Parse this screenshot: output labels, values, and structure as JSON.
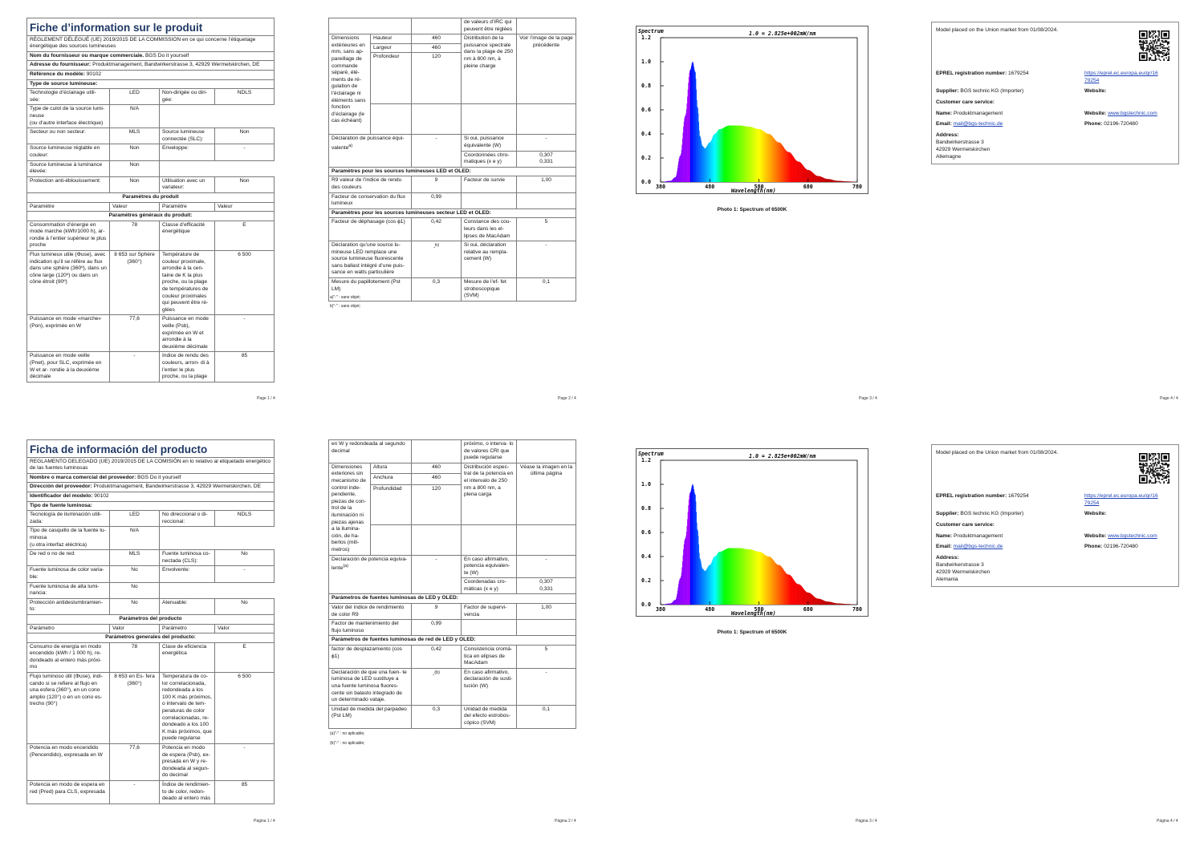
{
  "p1": {
    "title": "Fiche d’information sur le produit",
    "regulation": "RÈGLEMENT DÉLÉGUÉ (UE) 2019/2015 DE LA COMMISSION en ce qui concerne l’étiquetage énergétique des sources lumineuses",
    "supplier_label": "Nom du fournisseur ou marque commerciale.",
    "supplier_value": "BGS Do it yourself",
    "address_label": "Adresse du fournisseur:",
    "address_value": "Produktmanagement, Bandwirkerstrasse 3, 42929 Wermelskirchen, DE",
    "model_label": "Référence du modèle:",
    "model_value": "90102",
    "type_header": "Type de source lumineuse:",
    "r1a": "Technologie d’éclairage utili- sée:",
    "r1b": "LED",
    "r1c": "Non-dirigée ou diri- gée:",
    "r1d": "NDLS",
    "r2a": "Type de culot de la source lumi- neuse",
    "r2a2": "(ou d’autre interface électrique)",
    "r2b": "N/A",
    "r3a": "Secteur ou non secteur:",
    "r3b": "MLS",
    "r3c": "Source lumineuse connectée (SLC):",
    "r3d": "Non",
    "r4a": "Source lumineuse réglable en couleur:",
    "r4b": "Non",
    "r4c": "Enveloppe:",
    "r4d": "-",
    "r5a": "Source lumineuse à luminance élevée:",
    "r5b": "Non",
    "r6a": "Protection anti-éblouissement:",
    "r6b": "Non",
    "r6c": "Utilisation avec un variateur:",
    "r6d": "Non",
    "params_header": "Paramètres du produit",
    "h_param": "Paramètre",
    "h_value": "Valeur",
    "h_param2": "Paramètre",
    "h_value2": "Valeur",
    "general_header": "Paramètres généraux du produit:",
    "g1a": "Consommation d’énergie en mode marche (kWh/1000 h), ar- rondie à l’entier supérieur le plus proche",
    "g1b": "78",
    "g1c": "Classe d’efficacité énergétique",
    "g1d": "E",
    "g2a": "Flux lumineux utile (Φuse), avec indication qu’il se réfère au flux dans une sphère (360º), dans un cône large (120º) ou dans un cône étroit (90º)",
    "g2b": "8 653 sur Sphère (360°)",
    "g2c": "Température de couleur proximale, arrondie à la cen- taine de K la plus proche, ou la plage de températures de couleur proximales qui peuvent être ré- glées",
    "g2d": "6 500",
    "g3a": "Puissance en mode «marche» (Pon), exprimée en W",
    "g3b": "77,6",
    "g3c": "Puissance en mode veille (Psb), exprimée en W et arrondie à la deuxième décimale",
    "g3d": "-",
    "g4a": "Puissance en mode veille (Pnet), pour SLC, exprimée en W et ar- rondie à la deuxième décimale",
    "g4b": "-",
    "g4c": "Indice de rendu des couleurs, arron- di à l’entier le plus proche, ou la plage",
    "g4d": "85",
    "page": "Page 1 / 4"
  },
  "p2": {
    "top_c": "de valeurs d’IRC qui peuvent être réglées",
    "dim_label": "Dimensions extérieures en mm, sans ap- pareillage de commande séparé, élé- ments de ré- gulation de l’éclairage ni éléments sans fonction d’éclairage (le cas échéant)",
    "h_label": "Hauteur",
    "h_val": "460",
    "w_label": "Largeur",
    "w_val": "460",
    "d_label": "Profondeur",
    "d_val": "120",
    "spec_label": "Distribution de la puissance spectrale dans la plage de 250 nm à 800 nm, à pleine charge",
    "spec_val": "Voir l’image de la page précédente",
    "eq_label": "Déclaration de puissance équi- valente",
    "eq_sup": "a)",
    "eq_val": "-",
    "eq2_label": "Si oui, puissance équivalente (W)",
    "eq2_val": "-",
    "chrom_label": "Coordonnées chro- matiques (x e y)",
    "chrom_x": "0,307",
    "chrom_y": "0,331",
    "led_header": "Paramètres pour les sources lumineuses LED et OLED:",
    "r9_label": "R9 valeur de l’indice de rendu des couleurs",
    "r9_val": "9",
    "surv_label": "Facteur de survie",
    "surv_val": "1,00",
    "cons_label": "Facteur de conservation du flux lumineux",
    "cons_val": "0,99",
    "mains_header": "Paramètres pour les sources lumineuses secteur LED et OLED:",
    "phase_label": "Facteur de déphasage (cos ϕ1)",
    "phase_val": "0,42",
    "mac_label": "Constance des cou- leurs dans les el- lipses de MacAdam",
    "mac_val": "5",
    "repl_label": "Déclaration qu’une source lu- mineuse LED remplace une source lumineuse fluorescente sans ballast intégré d’une puis- sance en watts particulière",
    "repl_val": "-",
    "repl_sup": "b)",
    "repl2_label": "Si oui, déclaration relative au rempla- cement (W)",
    "repl2_val": "-",
    "flick_label": "Mesure du papillotement (Pst LM)",
    "flick_val": "0,3",
    "strobo_label": "Mesure de l’ef- fet stroboscopique (SVM)",
    "strobo_val": "0,1",
    "fn_a": "a)\"-\" : sans objet;",
    "fn_b": "b)\"-\" : sans objet;",
    "page": "Page 2 / 4"
  },
  "p3": {
    "page": "Page 3 / 4"
  },
  "p4": {
    "page": "Page 4 / 4",
    "country": "Allemagne"
  },
  "p5": {
    "title": "Ficha de información del producto",
    "regulation": "REGLAMENTO DELEGADO (UE) 2019/2015 DE LA COMISIÓN en lo relativo al etiquetado energético de las fuentes luminosas",
    "supplier_label": "Nombre o marca comercial del proveedor:",
    "supplier_value": "BGS Do it yourself",
    "address_label": "Dirección del proveedor:",
    "address_value": "Produktmanagement, Bandwirkerstrasse 3, 42929 Wermelskirchen, DE",
    "model_label": "Identificador del modelo:",
    "model_value": "90102",
    "type_header": "Tipo de fuente luminosa:",
    "r1a": "Tecnología de iluminación utili- zada:",
    "r1b": "LED",
    "r1c": "No direccional o di- reccional:",
    "r1d": "NDLS",
    "r2a": "Tipo de casquillo de la fuente lu- minosa",
    "r2a2": "(u otra interfaz eléctrica)",
    "r2b": "N/A",
    "r3a": "De red o no de red:",
    "r3b": "MLS",
    "r3c": "Fuente luminosa co- nectada (CLS):",
    "r3d": "No",
    "r4a": "Fuente luminosa de color varia- ble:",
    "r4b": "No",
    "r4c": "Envolvente:",
    "r4d": "-",
    "r5a": "Fuente luminosa de alta lumi- nancia:",
    "r5b": "No",
    "r6a": "Protección antideslumbramien- to:",
    "r6b": "No",
    "r6c": "Atenuable:",
    "r6d": "No",
    "params_header": "Parámetros del producto",
    "h_param": "Parámetro",
    "h_value": "Valor",
    "h_param2": "Parámetro",
    "h_value2": "Valor",
    "general_header": "Parámetros generales del producto:",
    "g1a": "Consumo de energía en modo encendido (kWh / 1 000 h), re- dondeado al entero más próxi- mo",
    "g1b": "78",
    "g1c": "Clase de eficiencia energética",
    "g1d": "E",
    "g2a": "Flujo luminoso útil (Φuse), indi- cando si se refiere al flujo en una esfera (360°), en un cono amplio (120°) o en un cono es- trecho (90°)",
    "g2b": "8 653 en Es- fera (360°)",
    "g2c": "Temperatura de co- lor correlacionada, redondeada a los 100 K más próximos, o intervalo de tem- peraturas de color correlacionadas, re- dondeado a los 100 K más próximos, que puede regularse",
    "g2d": "6 500",
    "g3a": "Potencia en modo encendido (Pencendido), expresada en W",
    "g3b": "77,6",
    "g3c": "Potencia en modo de espera (Psb), ex- presada en W y re- dondeada al segun- do decimal",
    "g3d": "-",
    "g4a": "Potencia en modo de espera en red (Pred) para CLS, expresada",
    "g4b": "-",
    "g4c": "Índice de rendimien- to de color, redon- deado al entero más",
    "g4d": "85",
    "page": "Página 1 / 4"
  },
  "p6": {
    "top_a": "en W y redondeada al segundo decimal",
    "top_c": "próximo, o interva- lo de valores CRI que puede regularse",
    "dim_label": "Dimensiones exteriores sin mecanismo de control inde- pendiente, piezas de con- trol de la iluminación ni piezas ajenas a la ilumina- ción, de ha- berlos (milí- metros)",
    "h_label": "Altura",
    "h_val": "460",
    "w_label": "Anchura",
    "w_val": "460",
    "d_label": "Profundidad",
    "d_val": "120",
    "spec_label": "Distribución espec- tral de la potencia en el intervalo de 250 nm a 800 nm, a plena carga",
    "spec_val": "Véase la imagen en la última página",
    "eq_label": "Declaración de potencia equiva- lente",
    "eq_sup": "(a)",
    "eq_val": "-",
    "eq2_label": "En caso afirmativo, potencia equivalen- te (W)",
    "eq2_val": "-",
    "chrom_label": "Coordenadas cro- máticas (x e y)",
    "chrom_x": "0,307",
    "chrom_y": "0,331",
    "led_header": "Parámetros de fuentes luminosas de LED y OLED:",
    "r9_label": "Valor del índice de rendimiento de color R9",
    "r9_val": "9",
    "surv_label": "Factor de supervi- vencia",
    "surv_val": "1,00",
    "cons_label": "Factor de mantenimiento del flujo luminoso",
    "cons_val": "0,99",
    "mains_header": "Parámetros de fuentes luminosas de red de LED y OLED:",
    "phase_label": "factor de desplazamiento (cos ϕ1)",
    "phase_val": "0,42",
    "mac_label": "Consistencia cromá- tica en elipses de MacAdam",
    "mac_val": "5",
    "repl_label": "Declaración de que una fuen- te luminosa de LED sustituye a una fuente luminosa fluores- cente sin balasto integrado de un determinado vataje.",
    "repl_val": "-",
    "repl_sup": "(b)",
    "repl2_label": "En caso afirmativo, declaración de susti- tución (W)",
    "repl2_val": "-",
    "flick_label": "Unidad de medida del parpadeo (Pst LM)",
    "flick_val": "0,3",
    "strobo_label": "Unidad de medida del efecto estrobos- cópico (SVM)",
    "strobo_val": "0,1",
    "fn_a": "(a)\"-\" : no aplicable;",
    "fn_b": "(b)\"-\" : no aplicable;",
    "page": "Página 2 / 4"
  },
  "p7": {
    "page": "Página 3 / 4"
  },
  "p8": {
    "page": "Página 4 / 4",
    "country": "Alemania"
  },
  "spectrum": {
    "title": "Spectrum",
    "scale": "1.0 = 2.825e+002mW/nm",
    "xlabel": "Wavelength(nm)",
    "yticks": [
      "1.2",
      "1.0",
      "0.8",
      "0.6",
      "0.4",
      "0.2",
      "0.0"
    ],
    "xticks": [
      "380",
      "480",
      "580",
      "680",
      "780"
    ],
    "caption": "Photo 1: Spectrum of 6500K"
  },
  "chart_data": {
    "type": "area",
    "title": "Spectrum",
    "xlabel": "Wavelength(nm)",
    "ylabel": "",
    "xlim": [
      380,
      780
    ],
    "ylim": [
      0,
      1.2
    ],
    "x": [
      380,
      400,
      410,
      420,
      430,
      440,
      445,
      450,
      455,
      460,
      465,
      470,
      480,
      490,
      500,
      520,
      540,
      560,
      580,
      600,
      620,
      640,
      660,
      680,
      700,
      720,
      740,
      760,
      780
    ],
    "y": [
      0.0,
      0.01,
      0.04,
      0.22,
      0.55,
      0.93,
      1.0,
      0.92,
      0.62,
      0.38,
      0.3,
      0.28,
      0.33,
      0.4,
      0.44,
      0.47,
      0.47,
      0.46,
      0.44,
      0.4,
      0.33,
      0.25,
      0.17,
      0.1,
      0.05,
      0.025,
      0.01,
      0.005,
      0.0
    ]
  },
  "eprel": {
    "placed": "Model placed on the Union market from 01/08/2024.",
    "reg_label": "EPREL registration number:",
    "reg_value": "1679254",
    "url_line1": "https://eprel.ec.europa.eu/qr/16",
    "url_line2": "79254",
    "supplier_label": "Supplier:",
    "supplier_value": "BGS technic KG (Importer)",
    "website_label": "Website:",
    "care_label": "Customer care service:",
    "name_label": "Name:",
    "name_value": "Produktmanagement",
    "website2_label": "Website:",
    "website2_value": "www.bgstechnic.com",
    "email_label": "Email:",
    "email_value": "mail@bgs-technic.de",
    "phone_label": "Phone:",
    "phone_value": "02196-720480",
    "address_label": "Address:",
    "street": "Bandwirkerstrasse 3",
    "city": "42929 Wermelskirchen"
  }
}
